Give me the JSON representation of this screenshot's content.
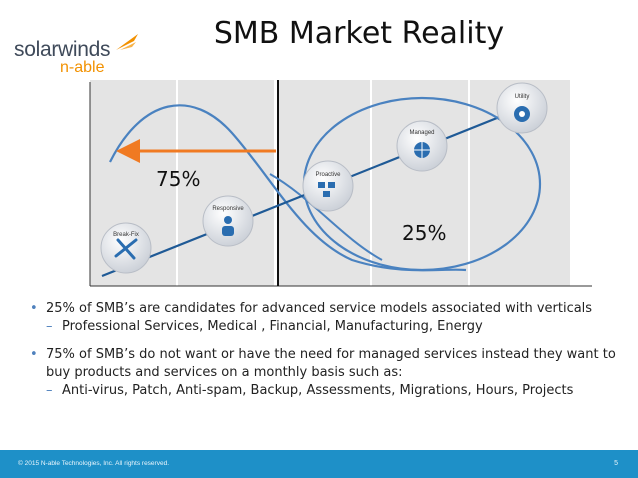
{
  "logo": {
    "wordmark": "solarwinds",
    "sub": "n-able",
    "brand_colors": {
      "primary": "#3f4a5a",
      "accent": "#f29100"
    }
  },
  "title": "SMB Market Reality",
  "diagram": {
    "percent_left": "75%",
    "percent_right": "25%",
    "stages": [
      "Break-Fix",
      "Responsive",
      "Proactive",
      "Managed",
      "Utility"
    ],
    "colors": {
      "curve": "#4a82c0",
      "arrow": "#f07a22",
      "line": "#1f5a96",
      "panel": "#e6e6e6"
    }
  },
  "bullets": [
    {
      "text": "25% of SMB’s are candidates for advanced service models associated with verticals",
      "sub": [
        "Professional Services, Medical , Financial, Manufacturing, Energy"
      ]
    },
    {
      "text": "75% of SMB’s do not want or have the need for managed services instead they want to buy products and services  on a monthly basis such as:",
      "sub": [
        "Anti-virus,  Patch, Anti-spam, Backup, Assessments, Migrations, Hours, Projects"
      ]
    }
  ],
  "footer": {
    "copyright": "© 2015 N-able Technologies, Inc. All rights reserved.",
    "page": "5",
    "color": "#1e90c8"
  }
}
